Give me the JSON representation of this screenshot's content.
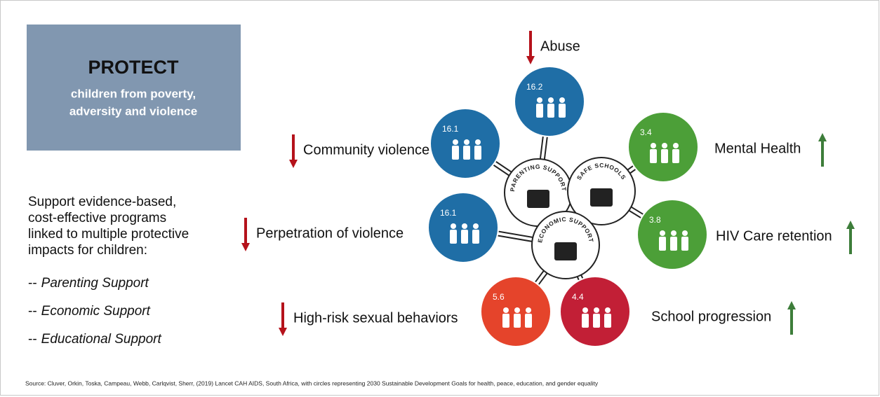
{
  "header": {
    "title": "PROTECT",
    "subtitle_lines": [
      "children from poverty,",
      "adversity and violence"
    ]
  },
  "intro": {
    "lines": [
      "Support evidence-based,",
      "cost-effective programs",
      "linked to multiple protective",
      "impacts for children:"
    ],
    "prefix": "--",
    "items": [
      "Parenting Support",
      "Economic Support",
      "Educational Support"
    ]
  },
  "hubs": [
    {
      "label": "PARENTING SUPPORT"
    },
    {
      "label": "SAFE SCHOOLS"
    },
    {
      "label": "ECONOMIC SUPPORT"
    }
  ],
  "outcomes": [
    {
      "code": "16.2",
      "label": "Abuse",
      "direction": "down",
      "color": "#1f6ea6"
    },
    {
      "code": "16.1",
      "label": "Community violence",
      "direction": "down",
      "color": "#1f6ea6"
    },
    {
      "code": "16.1",
      "label": "Perpetration of violence",
      "direction": "down",
      "color": "#1f6ea6"
    },
    {
      "code": "3.4",
      "label": "Mental Health",
      "direction": "up",
      "color": "#4c9f38"
    },
    {
      "code": "3.8",
      "label": "HIV Care retention",
      "direction": "up",
      "color": "#4c9f38"
    },
    {
      "code": "5.6",
      "label": "High-risk sexual behaviors",
      "direction": "down",
      "color": "#e5442b"
    },
    {
      "code": "4.4",
      "label": "School progression",
      "direction": "up",
      "color": "#c21f36"
    }
  ],
  "source": "Source: Cluver, Orkin, Toska, Campeau, Webb, Carlqvist, Sherr, (2019) Lancet CAH AIDS, South Africa, with circles representing 2030 Sustainable Development Goals for health, peace, education, and gender equality"
}
